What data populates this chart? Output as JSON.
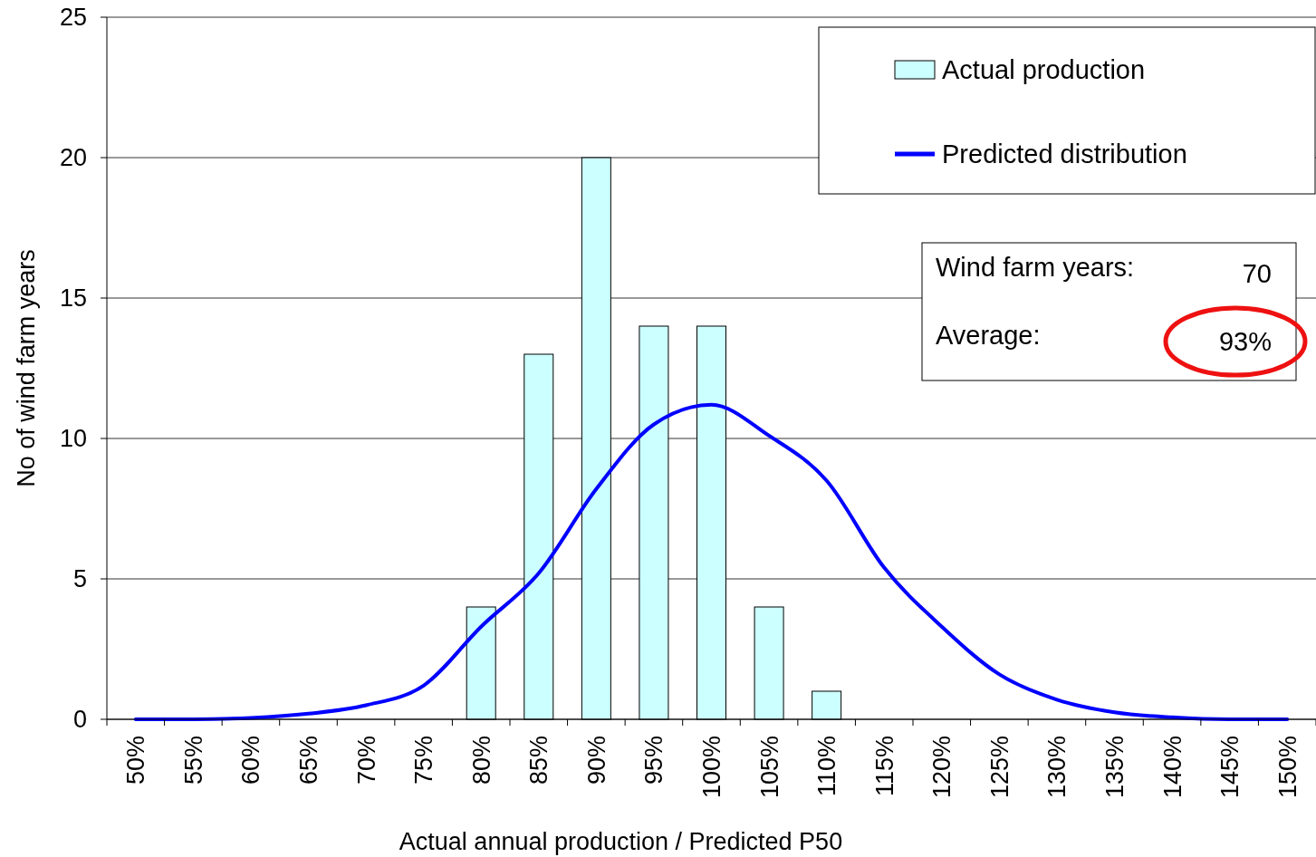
{
  "chart_data": {
    "type": "bar",
    "xlabel": "Actual annual production / Predicted P50",
    "ylabel": "No of wind farm years",
    "categories": [
      "50%",
      "55%",
      "60%",
      "65%",
      "70%",
      "75%",
      "80%",
      "85%",
      "90%",
      "95%",
      "100%",
      "105%",
      "110%",
      "115%",
      "120%",
      "125%",
      "130%",
      "135%",
      "140%",
      "145%",
      "150%"
    ],
    "series": [
      {
        "name": "Actual production",
        "color": "#ccffff",
        "values": [
          0,
          0,
          0,
          0,
          0,
          0,
          4,
          13,
          20,
          14,
          14,
          4,
          1,
          0,
          0,
          0,
          0,
          0,
          0,
          0,
          0
        ]
      },
      {
        "name": "Predicted distribution",
        "type": "line",
        "color": "#0000ff",
        "values": [
          0,
          0,
          0.05,
          0.2,
          0.5,
          1.2,
          3.3,
          5.2,
          8.2,
          10.5,
          11.2,
          10.1,
          8.5,
          5.4,
          3.3,
          1.6,
          0.7,
          0.25,
          0.07,
          0,
          0
        ]
      }
    ],
    "ylim": [
      0,
      25
    ],
    "yticks": [
      0,
      5,
      10,
      15,
      20,
      25
    ],
    "grid": "y",
    "legend": "top right",
    "marker": "none",
    "line_style": "solid",
    "annotations": [
      "Wind farm years:",
      "70",
      "Average:",
      "93%"
    ]
  }
}
